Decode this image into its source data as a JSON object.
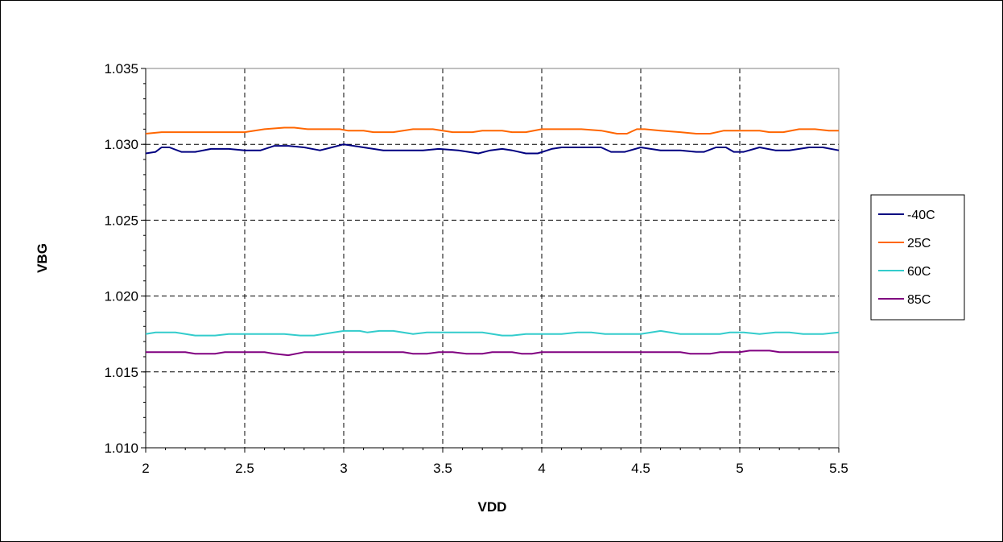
{
  "chart_data": {
    "type": "line",
    "title": "",
    "xlabel": "VDD",
    "ylabel": "VBG",
    "xlim": [
      2,
      5.5
    ],
    "ylim": [
      1.01,
      1.035
    ],
    "xticks": [
      2,
      2.5,
      3,
      3.5,
      4,
      4.5,
      5,
      5.5
    ],
    "xtick_labels": [
      "2",
      "2.5",
      "3",
      "3.5",
      "4",
      "4.5",
      "5",
      "5.5"
    ],
    "yticks": [
      1.01,
      1.015,
      1.02,
      1.025,
      1.03,
      1.035
    ],
    "ytick_labels": [
      "1.010",
      "1.015",
      "1.020",
      "1.025",
      "1.030",
      "1.035"
    ],
    "grid": true,
    "legend_position": "right",
    "series": [
      {
        "name": "-40C",
        "color": "#000080",
        "points": [
          [
            2.0,
            1.0294
          ],
          [
            2.05,
            1.0295
          ],
          [
            2.08,
            1.0298
          ],
          [
            2.12,
            1.0298
          ],
          [
            2.18,
            1.0295
          ],
          [
            2.25,
            1.0295
          ],
          [
            2.33,
            1.0297
          ],
          [
            2.42,
            1.0297
          ],
          [
            2.5,
            1.0296
          ],
          [
            2.58,
            1.0296
          ],
          [
            2.65,
            1.0299
          ],
          [
            2.72,
            1.0299
          ],
          [
            2.8,
            1.0298
          ],
          [
            2.88,
            1.0296
          ],
          [
            2.94,
            1.0298
          ],
          [
            3.0,
            1.03
          ],
          [
            3.1,
            1.0298
          ],
          [
            3.2,
            1.0296
          ],
          [
            3.3,
            1.0296
          ],
          [
            3.4,
            1.0296
          ],
          [
            3.48,
            1.0297
          ],
          [
            3.58,
            1.0296
          ],
          [
            3.68,
            1.0294
          ],
          [
            3.74,
            1.0296
          ],
          [
            3.8,
            1.0297
          ],
          [
            3.85,
            1.0296
          ],
          [
            3.92,
            1.0294
          ],
          [
            3.98,
            1.0294
          ],
          [
            4.05,
            1.0297
          ],
          [
            4.1,
            1.0298
          ],
          [
            4.2,
            1.0298
          ],
          [
            4.3,
            1.0298
          ],
          [
            4.35,
            1.0295
          ],
          [
            4.42,
            1.0295
          ],
          [
            4.5,
            1.0298
          ],
          [
            4.6,
            1.0296
          ],
          [
            4.7,
            1.0296
          ],
          [
            4.78,
            1.0295
          ],
          [
            4.82,
            1.0295
          ],
          [
            4.88,
            1.0298
          ],
          [
            4.93,
            1.0298
          ],
          [
            4.97,
            1.0295
          ],
          [
            5.02,
            1.0295
          ],
          [
            5.1,
            1.0298
          ],
          [
            5.18,
            1.0296
          ],
          [
            5.25,
            1.0296
          ],
          [
            5.35,
            1.0298
          ],
          [
            5.42,
            1.0298
          ],
          [
            5.5,
            1.0296
          ]
        ]
      },
      {
        "name": "25C",
        "color": "#FF6600",
        "points": [
          [
            2.0,
            1.0307
          ],
          [
            2.08,
            1.0308
          ],
          [
            2.2,
            1.0308
          ],
          [
            2.35,
            1.0308
          ],
          [
            2.5,
            1.0308
          ],
          [
            2.6,
            1.031
          ],
          [
            2.7,
            1.0311
          ],
          [
            2.75,
            1.0311
          ],
          [
            2.82,
            1.031
          ],
          [
            2.9,
            1.031
          ],
          [
            2.98,
            1.031
          ],
          [
            3.02,
            1.0309
          ],
          [
            3.1,
            1.0309
          ],
          [
            3.15,
            1.0308
          ],
          [
            3.25,
            1.0308
          ],
          [
            3.35,
            1.031
          ],
          [
            3.45,
            1.031
          ],
          [
            3.55,
            1.0308
          ],
          [
            3.65,
            1.0308
          ],
          [
            3.7,
            1.0309
          ],
          [
            3.8,
            1.0309
          ],
          [
            3.85,
            1.0308
          ],
          [
            3.92,
            1.0308
          ],
          [
            4.0,
            1.031
          ],
          [
            4.1,
            1.031
          ],
          [
            4.2,
            1.031
          ],
          [
            4.3,
            1.0309
          ],
          [
            4.38,
            1.0307
          ],
          [
            4.43,
            1.0307
          ],
          [
            4.48,
            1.031
          ],
          [
            4.52,
            1.031
          ],
          [
            4.6,
            1.0309
          ],
          [
            4.7,
            1.0308
          ],
          [
            4.78,
            1.0307
          ],
          [
            4.85,
            1.0307
          ],
          [
            4.92,
            1.0309
          ],
          [
            5.0,
            1.0309
          ],
          [
            5.1,
            1.0309
          ],
          [
            5.15,
            1.0308
          ],
          [
            5.22,
            1.0308
          ],
          [
            5.3,
            1.031
          ],
          [
            5.38,
            1.031
          ],
          [
            5.45,
            1.0309
          ],
          [
            5.5,
            1.0309
          ]
        ]
      },
      {
        "name": "60C",
        "color": "#33CCCC",
        "points": [
          [
            2.0,
            1.0175
          ],
          [
            2.05,
            1.0176
          ],
          [
            2.15,
            1.0176
          ],
          [
            2.25,
            1.0174
          ],
          [
            2.35,
            1.0174
          ],
          [
            2.42,
            1.0175
          ],
          [
            2.5,
            1.0175
          ],
          [
            2.6,
            1.0175
          ],
          [
            2.7,
            1.0175
          ],
          [
            2.78,
            1.0174
          ],
          [
            2.85,
            1.0174
          ],
          [
            2.95,
            1.0176
          ],
          [
            3.0,
            1.0177
          ],
          [
            3.08,
            1.0177
          ],
          [
            3.12,
            1.0176
          ],
          [
            3.18,
            1.0177
          ],
          [
            3.25,
            1.0177
          ],
          [
            3.35,
            1.0175
          ],
          [
            3.42,
            1.0176
          ],
          [
            3.5,
            1.0176
          ],
          [
            3.6,
            1.0176
          ],
          [
            3.7,
            1.0176
          ],
          [
            3.8,
            1.0174
          ],
          [
            3.85,
            1.0174
          ],
          [
            3.92,
            1.0175
          ],
          [
            4.0,
            1.0175
          ],
          [
            4.1,
            1.0175
          ],
          [
            4.18,
            1.0176
          ],
          [
            4.25,
            1.0176
          ],
          [
            4.32,
            1.0175
          ],
          [
            4.42,
            1.0175
          ],
          [
            4.5,
            1.0175
          ],
          [
            4.6,
            1.0177
          ],
          [
            4.7,
            1.0175
          ],
          [
            4.8,
            1.0175
          ],
          [
            4.9,
            1.0175
          ],
          [
            4.95,
            1.0176
          ],
          [
            5.02,
            1.0176
          ],
          [
            5.1,
            1.0175
          ],
          [
            5.18,
            1.0176
          ],
          [
            5.25,
            1.0176
          ],
          [
            5.32,
            1.0175
          ],
          [
            5.42,
            1.0175
          ],
          [
            5.5,
            1.0176
          ]
        ]
      },
      {
        "name": "85C",
        "color": "#800080",
        "points": [
          [
            2.0,
            1.0163
          ],
          [
            2.1,
            1.0163
          ],
          [
            2.2,
            1.0163
          ],
          [
            2.25,
            1.0162
          ],
          [
            2.35,
            1.0162
          ],
          [
            2.4,
            1.0163
          ],
          [
            2.5,
            1.0163
          ],
          [
            2.6,
            1.0163
          ],
          [
            2.65,
            1.0162
          ],
          [
            2.72,
            1.0161
          ],
          [
            2.8,
            1.0163
          ],
          [
            2.9,
            1.0163
          ],
          [
            3.0,
            1.0163
          ],
          [
            3.1,
            1.0163
          ],
          [
            3.2,
            1.0163
          ],
          [
            3.3,
            1.0163
          ],
          [
            3.35,
            1.0162
          ],
          [
            3.42,
            1.0162
          ],
          [
            3.48,
            1.0163
          ],
          [
            3.55,
            1.0163
          ],
          [
            3.62,
            1.0162
          ],
          [
            3.7,
            1.0162
          ],
          [
            3.75,
            1.0163
          ],
          [
            3.85,
            1.0163
          ],
          [
            3.9,
            1.0162
          ],
          [
            3.95,
            1.0162
          ],
          [
            4.0,
            1.0163
          ],
          [
            4.1,
            1.0163
          ],
          [
            4.2,
            1.0163
          ],
          [
            4.3,
            1.0163
          ],
          [
            4.4,
            1.0163
          ],
          [
            4.5,
            1.0163
          ],
          [
            4.6,
            1.0163
          ],
          [
            4.7,
            1.0163
          ],
          [
            4.75,
            1.0162
          ],
          [
            4.85,
            1.0162
          ],
          [
            4.9,
            1.0163
          ],
          [
            5.0,
            1.0163
          ],
          [
            5.05,
            1.0164
          ],
          [
            5.15,
            1.0164
          ],
          [
            5.2,
            1.0163
          ],
          [
            5.3,
            1.0163
          ],
          [
            5.4,
            1.0163
          ],
          [
            5.5,
            1.0163
          ]
        ]
      }
    ]
  }
}
